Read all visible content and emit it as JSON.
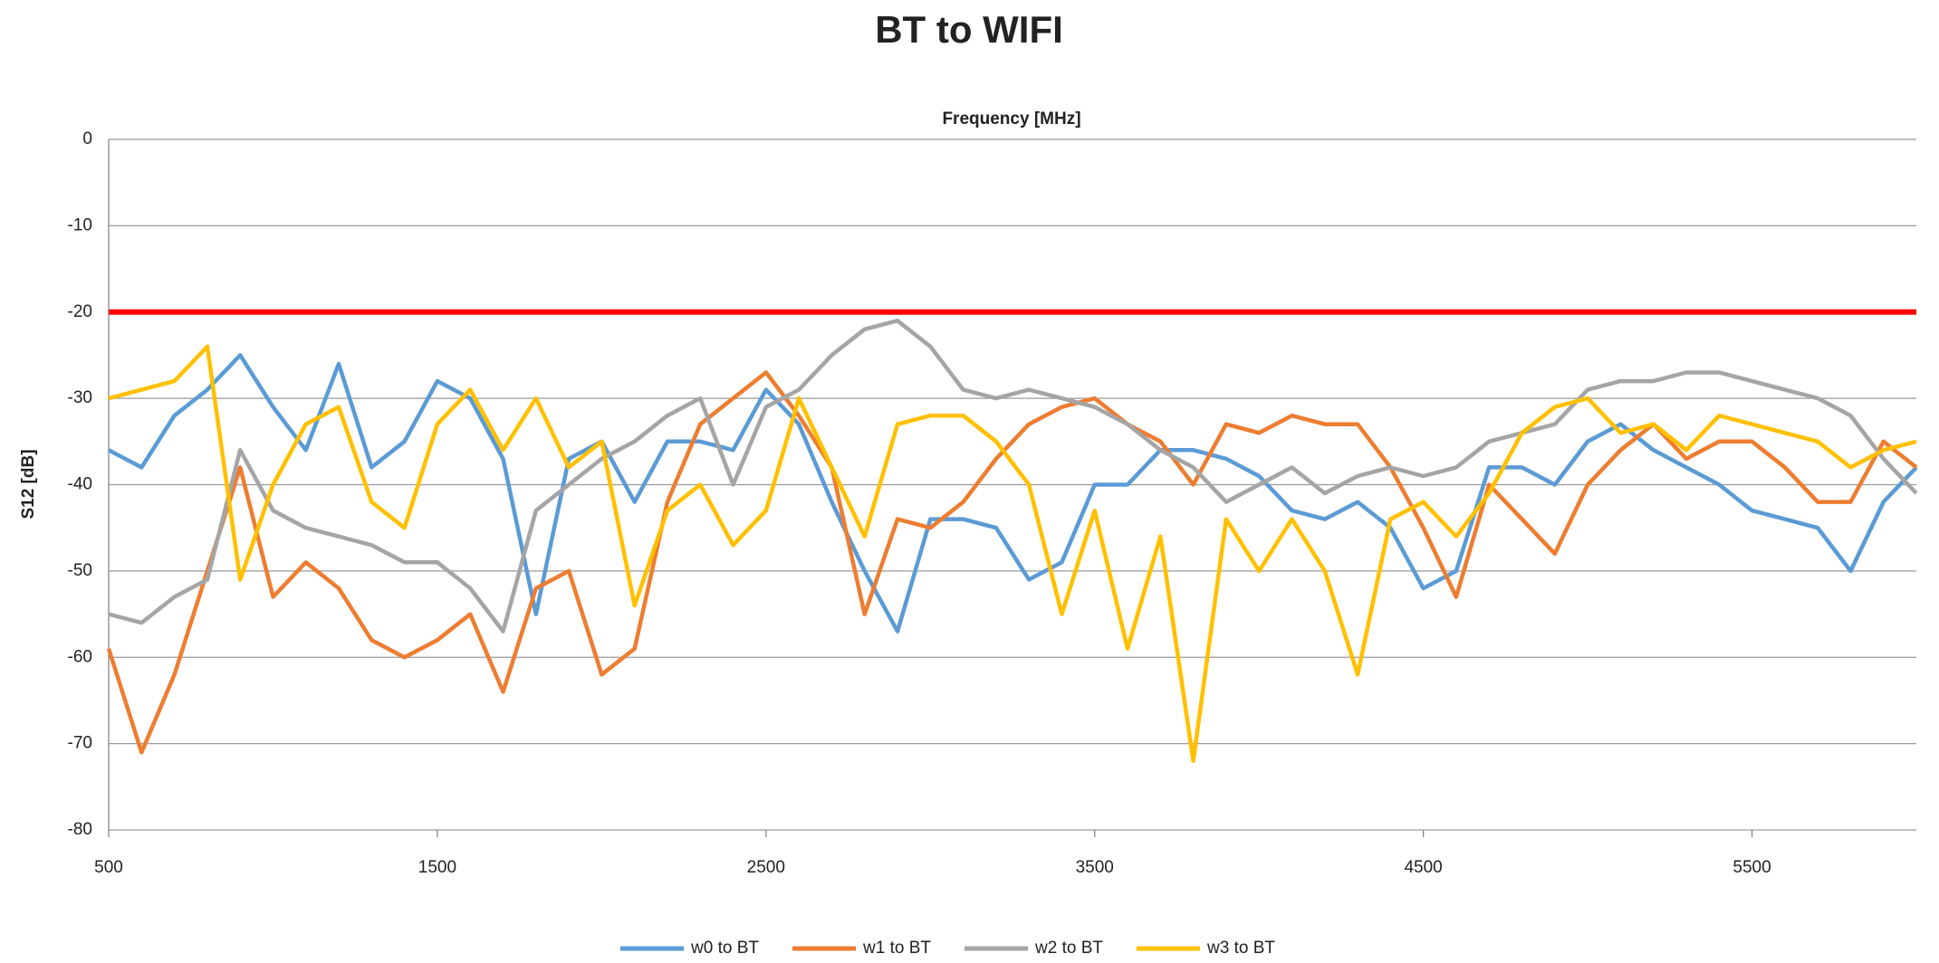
{
  "chart_data": {
    "type": "line",
    "title": "BT to WIFI",
    "x_label": "Frequency [MHz]",
    "y_label": "S12 [dB]",
    "x": [
      500,
      600,
      700,
      800,
      900,
      1000,
      1100,
      1200,
      1300,
      1400,
      1500,
      1600,
      1700,
      1800,
      1900,
      2000,
      2100,
      2200,
      2300,
      2400,
      2500,
      2600,
      2700,
      2800,
      2900,
      3000,
      3100,
      3200,
      3300,
      3400,
      3500,
      3600,
      3700,
      3800,
      3900,
      4000,
      4100,
      4200,
      4300,
      4400,
      4500,
      4600,
      4700,
      4800,
      4900,
      5000,
      5100,
      5200,
      5300,
      5400,
      5500,
      5600,
      5700,
      5800,
      5900,
      6000
    ],
    "series": [
      {
        "name": "w0 to BT",
        "color": "#5b9bd5",
        "values": [
          -36,
          -38,
          -32,
          -29,
          -25,
          -31,
          -36,
          -26,
          -38,
          -35,
          -28,
          -30,
          -37,
          -55,
          -37,
          -35,
          -42,
          -35,
          -35,
          -36,
          -29,
          -33,
          -42,
          -50,
          -57,
          -44,
          -44,
          -45,
          -51,
          -49,
          -40,
          -40,
          -36,
          -36,
          -37,
          -39,
          -43,
          -44,
          -42,
          -45,
          -52,
          -50,
          -38,
          -38,
          -40,
          -35,
          -33,
          -36,
          -38,
          -40,
          -43,
          -44,
          -45,
          -50,
          -42,
          -38
        ]
      },
      {
        "name": "w1 to BT",
        "color": "#ed7d31",
        "values": [
          -59,
          -71,
          -62,
          -50,
          -38,
          -53,
          -49,
          -52,
          -58,
          -60,
          -58,
          -55,
          -64,
          -52,
          -50,
          -62,
          -59,
          -42,
          -33,
          -30,
          -27,
          -32,
          -38,
          -55,
          -44,
          -45,
          -42,
          -37,
          -33,
          -31,
          -30,
          -33,
          -35,
          -40,
          -33,
          -34,
          -32,
          -33,
          -33,
          -38,
          -45,
          -53,
          -40,
          -44,
          -48,
          -40,
          -36,
          -33,
          -37,
          -35,
          -35,
          -38,
          -42,
          -42,
          -35,
          -38
        ]
      },
      {
        "name": "w2 to BT",
        "color": "#a5a5a5",
        "values": [
          -55,
          -56,
          -53,
          -51,
          -36,
          -43,
          -45,
          -46,
          -47,
          -49,
          -49,
          -52,
          -57,
          -43,
          -40,
          -37,
          -35,
          -32,
          -30,
          -40,
          -31,
          -29,
          -25,
          -22,
          -21,
          -24,
          -29,
          -30,
          -29,
          -30,
          -31,
          -33,
          -36,
          -38,
          -42,
          -40,
          -38,
          -41,
          -39,
          -38,
          -39,
          -38,
          -35,
          -34,
          -33,
          -29,
          -28,
          -28,
          -27,
          -27,
          -28,
          -29,
          -30,
          -32,
          -37,
          -41
        ]
      },
      {
        "name": "w3 to BT",
        "color": "#ffc000",
        "values": [
          -30,
          -29,
          -28,
          -24,
          -51,
          -40,
          -33,
          -31,
          -42,
          -45,
          -33,
          -29,
          -36,
          -30,
          -38,
          -35,
          -54,
          -43,
          -40,
          -47,
          -43,
          -30,
          -38,
          -46,
          -33,
          -32,
          -32,
          -35,
          -40,
          -55,
          -43,
          -59,
          -46,
          -72,
          -44,
          -50,
          -44,
          -50,
          -62,
          -44,
          -42,
          -46,
          -41,
          -34,
          -31,
          -30,
          -34,
          -33,
          -36,
          -32,
          -33,
          -34,
          -35,
          -38,
          -36,
          -35
        ]
      }
    ],
    "reference_line": {
      "value": -20,
      "color": "#ff0000"
    },
    "xlim": [
      500,
      6000
    ],
    "xticks": [
      500,
      1500,
      2500,
      3500,
      4500,
      5500
    ],
    "ylim": [
      -80,
      0
    ],
    "yticks": [
      -80,
      -70,
      -60,
      -50,
      -40,
      -30,
      -20,
      -10,
      0
    ],
    "grid": true,
    "legend": "bottom"
  }
}
